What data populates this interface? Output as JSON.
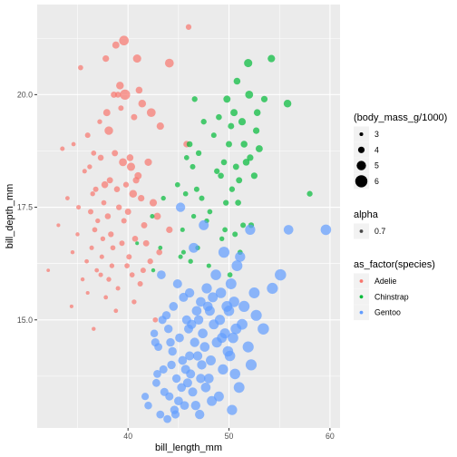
{
  "chart_data": {
    "type": "scatter",
    "xlabel": "bill_length_mm",
    "ylabel": "bill_depth_mm",
    "xlim": [
      31.0,
      61.0
    ],
    "ylim": [
      12.6,
      22.0
    ],
    "x_ticks": [
      40,
      50,
      60
    ],
    "x_tick_labels": [
      "40",
      "50",
      "60"
    ],
    "y_ticks": [
      15.0,
      17.5,
      20.0
    ],
    "y_tick_labels": [
      "15.0",
      "17.5",
      "20.0"
    ],
    "grid": true,
    "legend_placement": "right",
    "point_alpha": 0.7,
    "legends": {
      "size": {
        "title": "(body_mass_g/1000)",
        "entries": [
          {
            "label": "3",
            "value": 3
          },
          {
            "label": "4",
            "value": 4
          },
          {
            "label": "5",
            "value": 5
          },
          {
            "label": "6",
            "value": 6
          }
        ]
      },
      "alpha": {
        "title": "alpha",
        "entries": [
          {
            "label": "0.7",
            "value": 0.7
          }
        ]
      },
      "color": {
        "title": "as_factor(species)",
        "entries": [
          {
            "label": "Adelie",
            "color": "#F8766D"
          },
          {
            "label": "Chinstrap",
            "color": "#00BA38"
          },
          {
            "label": "Gentoo",
            "color": "#619CFF"
          }
        ]
      }
    },
    "series": [
      {
        "name": "Adelie",
        "color": "#F8766D",
        "x": [
          46.0,
          39.6,
          38.8,
          40.9,
          37.8,
          44.1,
          35.3,
          39.2,
          41.1,
          38.6,
          39.7,
          39.0,
          41.4,
          39.3,
          37.9,
          42.3,
          40.6,
          37.2,
          43.2,
          38.1,
          36.0,
          45.8,
          34.6,
          33.5,
          36.6,
          38.7,
          40.2,
          37.3,
          39.5,
          42.0,
          36.2,
          40.3,
          35.7,
          41.0,
          38.2,
          40.8,
          39.8,
          37.7,
          36.8,
          38.9,
          36.5,
          40.5,
          34.0,
          41.3,
          37.6,
          42.5,
          35.1,
          39.1,
          36.3,
          40.0,
          38.0,
          42.9,
          37.0,
          39.6,
          41.6,
          33.1,
          44.1,
          36.7,
          35.0,
          38.3,
          40.7,
          37.5,
          39.4,
          41.8,
          36.4,
          38.5,
          43.1,
          34.5,
          40.1,
          37.4,
          42.2,
          35.9,
          39.9,
          38.4,
          41.5,
          36.9,
          32.1,
          37.3,
          40.4,
          38.1,
          35.5,
          41.2,
          39.0,
          36.0,
          37.8,
          40.6,
          34.4,
          38.8,
          42.7,
          36.6
        ],
        "y": [
          21.5,
          21.2,
          21.1,
          20.8,
          20.8,
          20.7,
          20.6,
          20.2,
          20.1,
          20.0,
          20.0,
          20.0,
          19.8,
          19.7,
          19.6,
          19.6,
          19.5,
          19.4,
          19.3,
          19.2,
          19.1,
          18.9,
          18.9,
          18.8,
          18.7,
          18.7,
          18.6,
          18.6,
          18.5,
          18.5,
          18.4,
          18.4,
          18.3,
          18.2,
          18.1,
          18.1,
          18.0,
          18.0,
          17.9,
          17.9,
          17.8,
          17.8,
          17.7,
          17.7,
          17.6,
          17.6,
          17.5,
          17.5,
          17.4,
          17.4,
          17.3,
          17.3,
          17.2,
          17.2,
          17.1,
          17.1,
          17.0,
          17.0,
          16.9,
          16.9,
          16.8,
          16.8,
          16.7,
          16.7,
          16.6,
          16.6,
          16.5,
          16.5,
          16.4,
          16.4,
          16.3,
          16.3,
          16.2,
          16.2,
          16.1,
          16.1,
          16.1,
          16.0,
          16.0,
          15.9,
          15.9,
          15.8,
          15.7,
          15.6,
          15.5,
          15.4,
          15.3,
          15.2,
          15.0,
          14.8
        ],
        "size": [
          3.7,
          5.1,
          4.2,
          4.6,
          4.0,
          4.8,
          3.5,
          4.4,
          4.1,
          3.9,
          5.3,
          3.8,
          4.4,
          3.6,
          4.2,
          4.8,
          3.9,
          3.4,
          4.3,
          4.7,
          3.6,
          4.0,
          3.2,
          3.3,
          3.5,
          3.9,
          4.1,
          3.8,
          4.5,
          4.3,
          3.4,
          4.6,
          3.3,
          4.2,
          3.9,
          4.0,
          3.7,
          4.1,
          3.6,
          3.8,
          3.4,
          4.4,
          3.2,
          4.0,
          3.5,
          4.3,
          3.3,
          3.7,
          3.6,
          3.9,
          3.8,
          4.2,
          3.4,
          3.6,
          3.9,
          3.0,
          4.0,
          3.5,
          3.1,
          3.7,
          3.8,
          3.4,
          3.6,
          3.9,
          3.3,
          3.5,
          3.8,
          3.1,
          3.6,
          3.3,
          3.7,
          3.2,
          3.5,
          3.4,
          3.6,
          3.2,
          2.9,
          3.3,
          3.5,
          3.4,
          3.1,
          3.6,
          3.3,
          3.0,
          3.2,
          3.4,
          3.0,
          3.2,
          3.5,
          3.1
        ]
      },
      {
        "name": "Chinstrap",
        "color": "#00BA38",
        "x": [
          51.9,
          50.8,
          54.2,
          52.0,
          49.8,
          46.6,
          55.8,
          53.5,
          50.5,
          52.8,
          49.0,
          47.5,
          51.3,
          50.2,
          52.7,
          48.5,
          46.1,
          51.5,
          50.0,
          53.0,
          47.0,
          45.8,
          52.1,
          49.5,
          51.7,
          46.4,
          50.7,
          48.8,
          52.5,
          58.0,
          49.2,
          44.9,
          51.0,
          46.8,
          50.3,
          45.7,
          43.5,
          47.3,
          49.7,
          50.9,
          42.4,
          48.1,
          46.5,
          45.4,
          51.4,
          47.8,
          52.2,
          49.6,
          50.6,
          43.2,
          46.9,
          45.5,
          51.1,
          40.9,
          45.2,
          42.5,
          46.2,
          48.0,
          50.1,
          49.3
        ],
        "y": [
          20.7,
          20.3,
          20.8,
          20.0,
          19.9,
          19.9,
          19.8,
          19.9,
          19.6,
          19.6,
          19.5,
          19.4,
          19.4,
          19.3,
          19.2,
          19.1,
          18.9,
          18.9,
          18.9,
          18.8,
          18.7,
          18.6,
          18.6,
          18.5,
          18.5,
          18.4,
          18.4,
          18.3,
          18.2,
          17.8,
          18.2,
          18.0,
          18.1,
          17.9,
          17.9,
          17.8,
          17.7,
          17.7,
          17.6,
          17.6,
          17.3,
          17.4,
          17.3,
          17.0,
          17.1,
          17.2,
          17.1,
          17.0,
          16.9,
          16.6,
          16.6,
          16.5,
          16.5,
          16.7,
          16.4,
          16.1,
          16.3,
          16.2,
          16.0,
          16.8
        ],
        "size": [
          4.6,
          4.1,
          4.3,
          4.5,
          4.2,
          3.7,
          4.4,
          4.0,
          4.2,
          4.1,
          3.8,
          3.7,
          4.3,
          3.9,
          4.0,
          3.6,
          3.8,
          4.1,
          3.9,
          4.2,
          3.7,
          3.5,
          4.0,
          3.8,
          4.1,
          3.6,
          3.9,
          3.7,
          4.0,
          3.7,
          3.8,
          3.5,
          3.9,
          3.6,
          3.7,
          3.5,
          3.4,
          3.6,
          3.7,
          3.8,
          3.3,
          3.5,
          3.4,
          3.3,
          3.6,
          3.4,
          3.7,
          3.5,
          3.6,
          3.2,
          3.4,
          3.3,
          3.5,
          3.0,
          3.3,
          3.1,
          3.4,
          3.3,
          3.5,
          3.4
        ]
      },
      {
        "name": "Gentoo",
        "color": "#619CFF",
        "x": [
          59.6,
          55.9,
          52.1,
          45.2,
          47.5,
          49.5,
          50.8,
          46.5,
          51.1,
          43.3,
          48.7,
          50.2,
          44.9,
          47.8,
          54.3,
          49.2,
          46.1,
          52.5,
          48.4,
          45.5,
          50.5,
          47.2,
          55.1,
          49.8,
          44.5,
          51.5,
          46.8,
          48.1,
          50.0,
          43.8,
          52.7,
          47.0,
          49.1,
          45.8,
          51.3,
          46.3,
          48.5,
          50.7,
          44.0,
          53.4,
          47.4,
          49.6,
          45.1,
          50.4,
          46.6,
          48.8,
          42.7,
          51.9,
          47.6,
          49.9,
          44.4,
          46.9,
          50.1,
          48.2,
          45.4,
          52.2,
          47.3,
          43.5,
          49.4,
          46.2,
          50.6,
          44.8,
          48.0,
          45.9,
          42.8,
          51.0,
          47.7,
          43.6,
          46.4,
          49.0,
          44.1,
          45.0,
          48.3,
          46.7,
          42.0,
          50.3,
          44.6,
          47.1,
          43.2,
          45.7,
          49.3,
          46.0,
          41.7,
          44.3,
          47.9,
          43.4,
          45.3,
          42.9,
          46.1,
          44.7,
          43.0,
          45.6,
          42.6,
          44.2,
          47.2,
          43.9
        ],
        "y": [
          17.0,
          17.0,
          17.0,
          17.5,
          17.1,
          16.5,
          16.2,
          16.6,
          16.4,
          16.0,
          16.0,
          15.8,
          15.8,
          15.7,
          15.7,
          15.6,
          15.6,
          15.6,
          15.5,
          15.5,
          15.4,
          15.4,
          16.0,
          15.3,
          15.3,
          15.3,
          15.2,
          15.2,
          15.2,
          15.1,
          15.1,
          15.0,
          15.0,
          15.0,
          14.9,
          14.9,
          14.9,
          14.8,
          14.8,
          14.8,
          14.7,
          14.7,
          14.6,
          14.6,
          14.5,
          14.5,
          14.5,
          14.4,
          14.4,
          14.3,
          14.3,
          14.2,
          14.2,
          14.1,
          14.1,
          14.0,
          14.0,
          13.9,
          13.9,
          13.8,
          13.8,
          13.7,
          13.7,
          13.6,
          13.6,
          13.5,
          13.5,
          13.4,
          13.4,
          13.3,
          13.3,
          13.2,
          13.2,
          13.1,
          13.1,
          13.0,
          13.0,
          12.9,
          12.9,
          13.9,
          14.6,
          14.8,
          13.3,
          14.0,
          15.3,
          15.0,
          13.5,
          13.8,
          14.2,
          12.9,
          14.4,
          13.1,
          14.7,
          14.5,
          13.7,
          12.8
        ],
        "size": [
          5.4,
          5.1,
          5.3,
          5.0,
          5.2,
          5.6,
          5.5,
          5.2,
          5.3,
          4.8,
          5.4,
          5.5,
          4.9,
          5.3,
          5.6,
          5.4,
          5.0,
          5.5,
          5.2,
          4.9,
          5.4,
          5.1,
          5.7,
          5.5,
          4.8,
          5.6,
          5.1,
          5.2,
          5.4,
          4.7,
          5.6,
          5.0,
          5.3,
          4.9,
          5.5,
          5.0,
          5.2,
          5.5,
          4.7,
          5.7,
          5.1,
          5.3,
          4.8,
          5.4,
          5.0,
          5.3,
          4.6,
          5.6,
          5.1,
          5.4,
          4.7,
          5.0,
          5.4,
          5.2,
          4.8,
          5.6,
          5.0,
          4.6,
          5.3,
          4.9,
          5.4,
          4.7,
          5.1,
          4.9,
          4.5,
          5.5,
          5.1,
          4.6,
          4.9,
          5.2,
          4.6,
          4.8,
          5.2,
          5.0,
          4.4,
          5.3,
          4.7,
          5.0,
          4.5,
          4.9,
          5.2,
          4.9,
          4.3,
          4.7,
          5.1,
          4.6,
          4.8,
          4.5,
          4.9,
          4.6,
          4.5,
          4.8,
          4.4,
          4.7,
          5.0,
          4.5
        ]
      }
    ]
  }
}
